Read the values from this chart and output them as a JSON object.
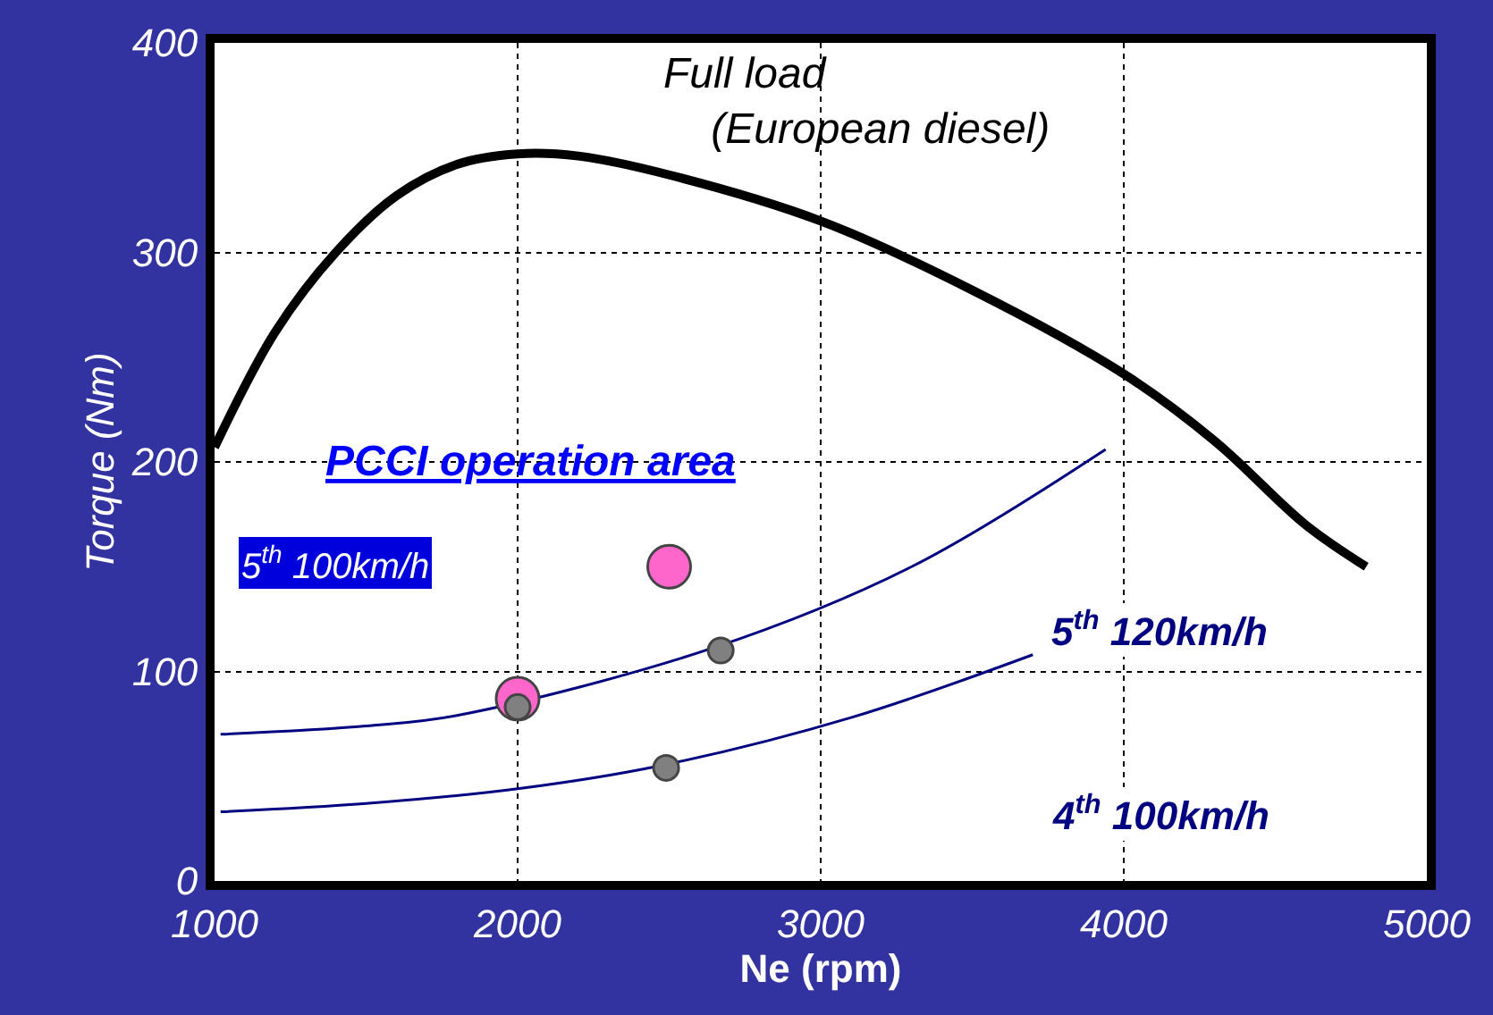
{
  "chart_data": {
    "type": "line",
    "xlabel": "Ne (rpm)",
    "ylabel": "Torque (Nm)",
    "xlim": [
      1000,
      5000
    ],
    "xticks": [
      1000,
      2000,
      3000,
      4000,
      5000
    ],
    "ylim": [
      0,
      400
    ],
    "yticks": [
      0,
      100,
      200,
      300,
      400
    ],
    "grid": true,
    "legend": false,
    "line_style": "solid",
    "series": [
      {
        "color": "#000000",
        "marker": "none",
        "x": [
          1000,
          1200,
          1400,
          1600,
          1800,
          2000,
          2200,
          2500,
          3000,
          3500,
          4000,
          4300,
          4600,
          4800
        ],
        "values": [
          207,
          262,
          300,
          327,
          342,
          347,
          346,
          337,
          315,
          282,
          242,
          210,
          170,
          150
        ]
      },
      {
        "color": "#000080",
        "marker": "none",
        "x": [
          1020,
          1500,
          1800,
          2640,
          3300,
          3940
        ],
        "values": [
          70,
          74,
          79,
          111,
          150,
          206
        ]
      },
      {
        "color": "#000080",
        "marker": "none",
        "x": [
          1020,
          1500,
          2000,
          2470,
          3100,
          3700
        ],
        "values": [
          33,
          37,
          44,
          55,
          78,
          108
        ]
      },
      {
        "type": "scatter",
        "color": "#ff66cc",
        "marker": "circle",
        "x": [
          2500,
          2000
        ],
        "values": [
          150,
          87
        ]
      },
      {
        "type": "scatter",
        "color": "#808080",
        "marker": "circle",
        "x": [
          2670,
          2490,
          2000
        ],
        "values": [
          110,
          54,
          83
        ]
      }
    ],
    "annotations": [
      "Full load\n    (European diesel)",
      "PCCI operation area",
      "5$^{th}$ 100km/h",
      "5$^{th}$ 120km/h",
      "4$^{th}$ 100km/h"
    ]
  }
}
